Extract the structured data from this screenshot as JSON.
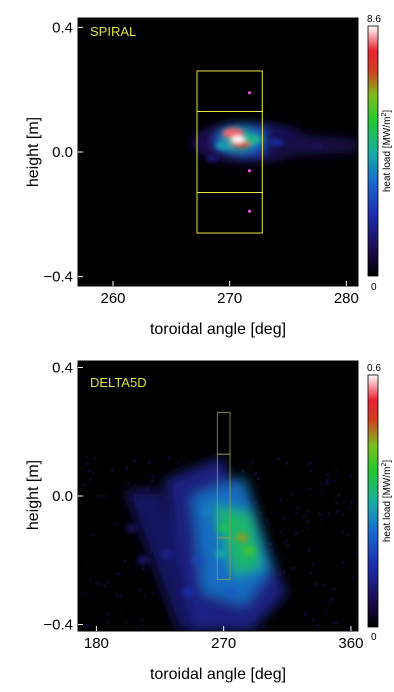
{
  "chart_data": [
    {
      "type": "heatmap",
      "title": "SPIRAL",
      "xlabel": "toroidal angle [deg]",
      "ylabel": "height [m]",
      "xlim": [
        257,
        281
      ],
      "ylim": [
        -0.43,
        0.43
      ],
      "xticks": [
        "260",
        "270",
        "280"
      ],
      "yticks": [
        "0.4",
        "0.0",
        "−0.4"
      ],
      "colorbar": {
        "label": "heat load [MW/m²]",
        "label_text": "heat load [MW/m",
        "label_sup": "2",
        "label_end": "]",
        "max_label": "8.6",
        "min_label": "0",
        "max": 8.6,
        "min": 0
      },
      "grid": false,
      "peak": {
        "x": 270.7,
        "y": 0.04,
        "value": 8.6
      },
      "hot_spots": [
        {
          "x": 270.3,
          "y": 0.06,
          "value": 8.0
        },
        {
          "x": 271.0,
          "y": 0.03,
          "value": 7.2
        },
        {
          "x": 272.0,
          "y": 0.04,
          "value": 4.5
        },
        {
          "x": 269.5,
          "y": 0.02,
          "value": 4.0
        },
        {
          "x": 274.0,
          "y": 0.03,
          "value": 2.0
        },
        {
          "x": 277.5,
          "y": 0.02,
          "value": 1.0
        },
        {
          "x": 268.5,
          "y": -0.02,
          "value": 1.4
        }
      ],
      "diagnostic_boxes": [
        {
          "x": [
            267.2,
            272.8
          ],
          "y": [
            0.13,
            0.26
          ]
        },
        {
          "x": [
            267.2,
            272.8
          ],
          "y": [
            -0.13,
            0.13
          ]
        },
        {
          "x": [
            267.2,
            272.8
          ],
          "y": [
            -0.26,
            -0.13
          ]
        }
      ],
      "markers": [
        {
          "x": 271.7,
          "y": 0.19
        },
        {
          "x": 271.7,
          "y": -0.06
        },
        {
          "x": 271.7,
          "y": -0.19
        }
      ],
      "colors": {
        "box": "#e6e63c",
        "marker": "#e050d0",
        "background": "#000000"
      }
    },
    {
      "type": "heatmap",
      "title": "DELTA5D",
      "xlabel": "toroidal angle [deg]",
      "ylabel": "height [m]",
      "xlim": [
        167,
        365
      ],
      "ylim": [
        -0.42,
        0.42
      ],
      "xticks": [
        "180",
        "270",
        "360"
      ],
      "yticks": [
        "0.4",
        "0.0",
        "−0.4"
      ],
      "colorbar": {
        "label": "heat load [MW/m²]",
        "label_text": "heat load [MW/m",
        "label_sup": "2",
        "label_end": "]",
        "max_label": "0.6",
        "min_label": "0",
        "max": 0.6,
        "min": 0
      },
      "grid": false,
      "hot_spots": [
        {
          "x": 270,
          "y": -0.1,
          "value": 0.35
        },
        {
          "x": 283,
          "y": -0.13,
          "value": 0.45
        },
        {
          "x": 288,
          "y": -0.17,
          "value": 0.4
        },
        {
          "x": 268,
          "y": -0.18,
          "value": 0.3
        },
        {
          "x": 258,
          "y": -0.05,
          "value": 0.25
        },
        {
          "x": 252,
          "y": -0.2,
          "value": 0.18
        },
        {
          "x": 245,
          "y": -0.3,
          "value": 0.15
        },
        {
          "x": 230,
          "y": -0.18,
          "value": 0.12
        },
        {
          "x": 213,
          "y": -0.2,
          "value": 0.1
        },
        {
          "x": 205,
          "y": -0.1,
          "value": 0.08
        },
        {
          "x": 275,
          "y": -0.3,
          "value": 0.2
        }
      ],
      "diagnostic_boxes": [
        {
          "x": [
            265.5,
            274.5
          ],
          "y": [
            0.13,
            0.26
          ]
        },
        {
          "x": [
            265.5,
            274.5
          ],
          "y": [
            -0.13,
            0.13
          ]
        },
        {
          "x": [
            265.5,
            274.5
          ],
          "y": [
            -0.26,
            -0.13
          ]
        }
      ],
      "colors": {
        "box": "#9a9a4a",
        "background": "#000000"
      }
    }
  ]
}
